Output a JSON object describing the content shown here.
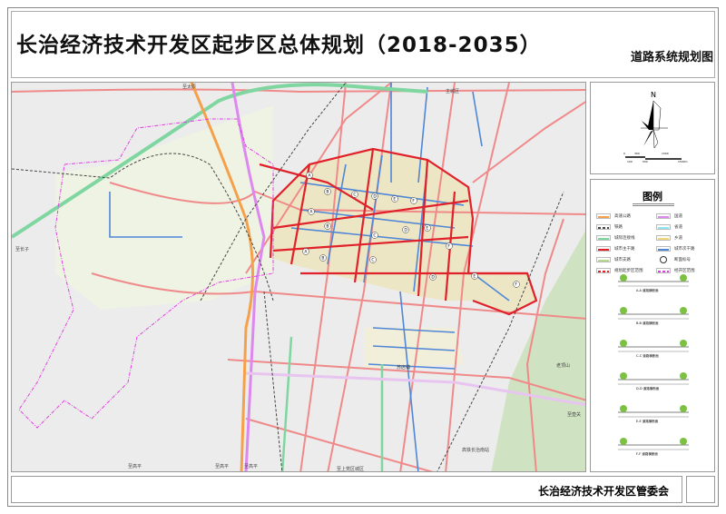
{
  "title": "长治经济技术开发区起步区总体规划（2018-2035）",
  "subtitle": "道路系统规划图",
  "footer": "长治经济技术开发区管委会",
  "north": {
    "label": "N",
    "scale_labels": [
      "0",
      "100",
      "300",
      "500",
      "1000",
      "1500m"
    ]
  },
  "legend": {
    "title": "图例",
    "items": [
      {
        "label": "高速公路",
        "color": "#f5a04a",
        "style": "solid"
      },
      {
        "label": "国道",
        "color": "#dd88ee",
        "style": "solid"
      },
      {
        "label": "铁路",
        "color": "#444444",
        "style": "dashed"
      },
      {
        "label": "省道",
        "color": "#8fe6f0",
        "style": "solid"
      },
      {
        "label": "城际连接线",
        "color": "#7fd6a0",
        "style": "solid"
      },
      {
        "label": "乡道",
        "color": "#f2d77a",
        "style": "solid"
      },
      {
        "label": "城市主干路",
        "color": "#e0212a",
        "style": "solid"
      },
      {
        "label": "城市次干路",
        "color": "#4f86d6",
        "style": "solid"
      },
      {
        "label": "城市支路",
        "color": "#b8d890",
        "style": "solid"
      },
      {
        "label": "断面标号",
        "color": "#333333",
        "style": "circle-A"
      },
      {
        "label": "规划起步区范围",
        "color": "#e0212a",
        "style": "dashdot"
      },
      {
        "label": "经开区范围",
        "color": "#e040e0",
        "style": "dashdot"
      }
    ],
    "sections": [
      "A-A 道路横断面",
      "B-B 道路横断面",
      "C-C 道路横断面",
      "D-D 道路横断面",
      "E-E 道路横断面",
      "F-F 道路横断面"
    ]
  },
  "map_labels": {
    "taiyuan": "至太原",
    "zhuchengqu": "主城区",
    "zhangzi": "至长子",
    "gaoping1": "至高平",
    "gaoping2": "至高平",
    "gaoping3": "至高平",
    "shangdang": "至上党区城区",
    "sudian": "苏店镇",
    "laodingshan": "老顶山",
    "huguan": "至壶关",
    "south_station": "高铁长治南站"
  },
  "section_markers": [
    "A",
    "B",
    "C",
    "D",
    "E",
    "F",
    "A",
    "B",
    "C",
    "D",
    "E",
    "F",
    "A",
    "B",
    "C",
    "D",
    "E",
    "F"
  ],
  "colors": {
    "main": "#e0212a",
    "secondary": "#4f86d6",
    "pink": "#f08a8a",
    "express": "#7fd6a0",
    "highway": "#f5a04a",
    "national": "#dd88ee",
    "boundary": "#e040e0"
  }
}
